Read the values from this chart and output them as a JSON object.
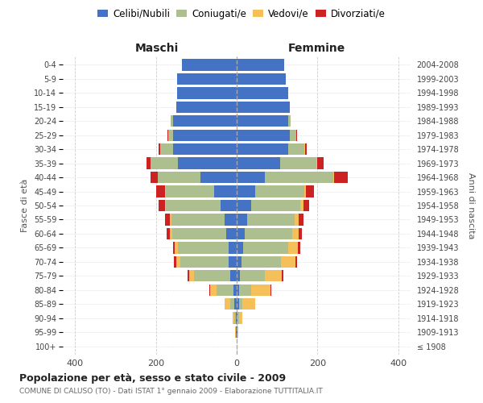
{
  "age_groups": [
    "100+",
    "95-99",
    "90-94",
    "85-89",
    "80-84",
    "75-79",
    "70-74",
    "65-69",
    "60-64",
    "55-59",
    "50-54",
    "45-49",
    "40-44",
    "35-39",
    "30-34",
    "25-29",
    "20-24",
    "15-19",
    "10-14",
    "5-9",
    "0-4"
  ],
  "birth_years": [
    "≤ 1908",
    "1909-1913",
    "1914-1918",
    "1919-1923",
    "1924-1928",
    "1929-1933",
    "1934-1938",
    "1939-1943",
    "1944-1948",
    "1949-1953",
    "1954-1958",
    "1959-1963",
    "1964-1968",
    "1969-1973",
    "1974-1978",
    "1979-1983",
    "1984-1988",
    "1989-1993",
    "1994-1998",
    "1999-2003",
    "2004-2008"
  ],
  "maschi": {
    "celibi": [
      0,
      1,
      2,
      5,
      8,
      15,
      20,
      20,
      25,
      30,
      40,
      55,
      90,
      145,
      158,
      158,
      158,
      150,
      148,
      148,
      135
    ],
    "coniugati": [
      0,
      1,
      3,
      10,
      42,
      90,
      120,
      125,
      135,
      132,
      135,
      120,
      105,
      68,
      32,
      12,
      5,
      0,
      0,
      0,
      0
    ],
    "vedovi": [
      0,
      2,
      5,
      15,
      15,
      12,
      10,
      8,
      5,
      3,
      3,
      2,
      1,
      1,
      0,
      0,
      0,
      0,
      0,
      0,
      0
    ],
    "divorziati": [
      0,
      0,
      0,
      0,
      2,
      5,
      5,
      5,
      8,
      12,
      15,
      22,
      18,
      8,
      3,
      1,
      0,
      0,
      0,
      0,
      0
    ]
  },
  "femmine": {
    "nubili": [
      0,
      1,
      2,
      5,
      5,
      8,
      12,
      15,
      20,
      25,
      35,
      45,
      70,
      108,
      128,
      132,
      128,
      132,
      128,
      122,
      118
    ],
    "coniugate": [
      0,
      1,
      3,
      8,
      30,
      62,
      98,
      112,
      118,
      118,
      122,
      122,
      168,
      90,
      40,
      15,
      5,
      0,
      0,
      0,
      0
    ],
    "vedove": [
      0,
      2,
      8,
      32,
      48,
      42,
      36,
      25,
      15,
      10,
      8,
      5,
      2,
      2,
      1,
      0,
      0,
      0,
      0,
      0,
      0
    ],
    "divorziate": [
      0,
      0,
      0,
      0,
      2,
      3,
      3,
      5,
      8,
      12,
      15,
      20,
      35,
      15,
      5,
      2,
      0,
      0,
      0,
      0,
      0
    ]
  },
  "colors": {
    "celibi": "#4472C4",
    "coniugati": "#ADBF8E",
    "vedovi": "#F5C05A",
    "divorziati": "#CC2222"
  },
  "legend_labels": [
    "Celibi/Nubili",
    "Coniugati/e",
    "Vedovi/e",
    "Divorziati/e"
  ],
  "title": "Popolazione per età, sesso e stato civile - 2009",
  "subtitle": "COMUNE DI CALUSO (TO) - Dati ISTAT 1° gennaio 2009 - Elaborazione TUTTITALIA.IT",
  "label_maschi": "Maschi",
  "label_femmine": "Femmine",
  "ylabel_left": "Fasce di età",
  "ylabel_right": "Anni di nascita",
  "xlim": 430
}
